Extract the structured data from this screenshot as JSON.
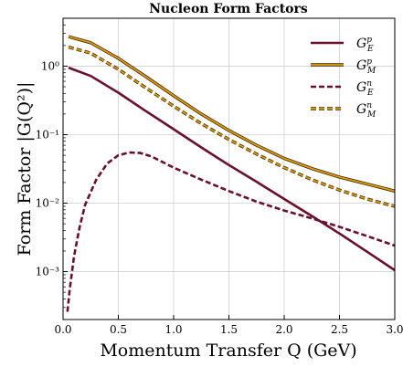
{
  "chart_data": {
    "type": "line",
    "title": "Nucleon Form Factors",
    "xlabel": "Momentum Transfer Q (GeV)",
    "ylabel": "Form Factor |G(Q²)|",
    "xlim": [
      0.0,
      3.0
    ],
    "ylim": [
      0.0002,
      5
    ],
    "yscale": "log",
    "grid": true,
    "legend_position": "top-right",
    "x_ticks": [
      0.0,
      0.5,
      1.0,
      1.5,
      2.0,
      2.5,
      3.0
    ],
    "x_tick_labels": [
      "0.0",
      "0.5",
      "1.0",
      "1.5",
      "2.0",
      "2.5",
      "3.0"
    ],
    "y_ticks": [
      0.001,
      0.01,
      0.1,
      1
    ],
    "y_tick_labels": [
      "10⁻³",
      "10⁻²",
      "10⁻¹",
      "10⁰"
    ],
    "series": [
      {
        "name": "G_E^p",
        "color": "#6b0f2a",
        "style": "solid",
        "x": [
          0.05,
          0.25,
          0.5,
          0.75,
          1.0,
          1.25,
          1.5,
          1.75,
          2.0,
          2.25,
          2.5,
          2.75,
          3.0
        ],
        "y": [
          0.95,
          0.72,
          0.41,
          0.22,
          0.12,
          0.065,
          0.036,
          0.0205,
          0.0115,
          0.0065,
          0.0036,
          0.00195,
          0.00105
        ]
      },
      {
        "name": "G_M^p",
        "color": "#e39b12",
        "style": "solid",
        "x": [
          0.05,
          0.25,
          0.5,
          0.75,
          1.0,
          1.25,
          1.5,
          1.75,
          2.0,
          2.25,
          2.5,
          2.75,
          3.0
        ],
        "y": [
          2.7,
          2.2,
          1.3,
          0.7,
          0.37,
          0.2,
          0.115,
          0.07,
          0.045,
          0.032,
          0.024,
          0.019,
          0.015
        ]
      },
      {
        "name": "G_E^n",
        "color": "#6b0f2a",
        "style": "dashed",
        "x": [
          0.04,
          0.06,
          0.1,
          0.15,
          0.2,
          0.3,
          0.4,
          0.5,
          0.6,
          0.7,
          0.8,
          1.0,
          1.25,
          1.5,
          1.75,
          2.0,
          2.25,
          2.5,
          2.75,
          3.0
        ],
        "y": [
          0.00026,
          0.00055,
          0.0017,
          0.0045,
          0.0095,
          0.022,
          0.038,
          0.05,
          0.055,
          0.054,
          0.048,
          0.033,
          0.022,
          0.015,
          0.0105,
          0.0078,
          0.006,
          0.0045,
          0.0033,
          0.0024
        ]
      },
      {
        "name": "G_M^n",
        "color": "#e39b12",
        "style": "dashed",
        "x": [
          0.05,
          0.25,
          0.5,
          0.75,
          1.0,
          1.25,
          1.5,
          1.75,
          2.0,
          2.25,
          2.5,
          2.75,
          3.0
        ],
        "y": [
          1.9,
          1.55,
          0.9,
          0.48,
          0.26,
          0.145,
          0.085,
          0.052,
          0.033,
          0.022,
          0.0155,
          0.0115,
          0.009
        ]
      }
    ],
    "legend": [
      {
        "symbol": "G",
        "sub": "E",
        "sup": "p",
        "series": 0
      },
      {
        "symbol": "G",
        "sub": "M",
        "sup": "p",
        "series": 1
      },
      {
        "symbol": "G",
        "sub": "E",
        "sup": "n",
        "series": 2
      },
      {
        "symbol": "G",
        "sub": "M",
        "sup": "n",
        "series": 3
      }
    ]
  }
}
